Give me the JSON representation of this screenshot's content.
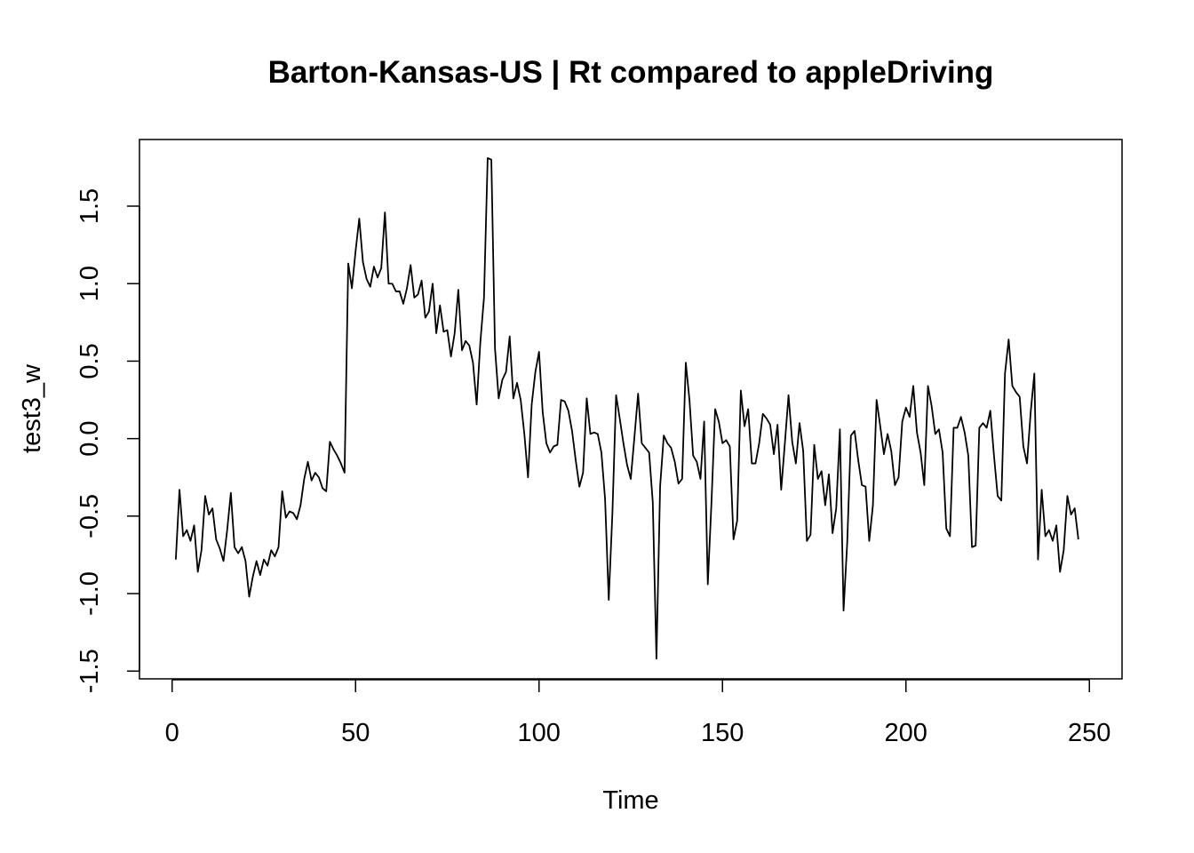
{
  "chart_data": {
    "type": "line",
    "title": "Barton-Kansas-US | Rt compared to appleDriving",
    "xlabel": "Time",
    "ylabel": "test3_w",
    "xlim": [
      -8.9,
      258.9
    ],
    "ylim": [
      -1.55,
      1.93
    ],
    "x_ticks": [
      0,
      50,
      100,
      150,
      200,
      250
    ],
    "x_tick_labels": [
      "0",
      "50",
      "100",
      "150",
      "200",
      "250"
    ],
    "y_ticks": [
      -1.5,
      -1.0,
      -0.5,
      0.0,
      0.5,
      1.0,
      1.5
    ],
    "y_tick_labels": [
      "-1.5",
      "-1.0",
      "-0.5",
      "0.0",
      "0.5",
      "1.0",
      "1.5"
    ],
    "grid": false,
    "legend": "none",
    "line_color": "#000000",
    "series": [
      {
        "x_start": 1,
        "x_step": 1,
        "values": [
          -0.78,
          -0.33,
          -0.63,
          -0.59,
          -0.66,
          -0.56,
          -0.86,
          -0.72,
          -0.37,
          -0.49,
          -0.45,
          -0.65,
          -0.71,
          -0.79,
          -0.59,
          -0.35,
          -0.7,
          -0.74,
          -0.7,
          -0.79,
          -1.02,
          -0.89,
          -0.79,
          -0.88,
          -0.78,
          -0.82,
          -0.72,
          -0.76,
          -0.7,
          -0.34,
          -0.51,
          -0.47,
          -0.48,
          -0.52,
          -0.43,
          -0.26,
          -0.15,
          -0.27,
          -0.22,
          -0.25,
          -0.32,
          -0.34,
          -0.02,
          -0.07,
          -0.11,
          -0.16,
          -0.22,
          1.13,
          0.97,
          1.21,
          1.42,
          1.14,
          1.03,
          0.98,
          1.11,
          1.04,
          1.1,
          1.46,
          1.0,
          1.0,
          0.95,
          0.95,
          0.87,
          0.97,
          1.12,
          0.91,
          0.93,
          1.02,
          0.78,
          0.82,
          1.0,
          0.68,
          0.86,
          0.69,
          0.7,
          0.53,
          0.68,
          0.96,
          0.57,
          0.63,
          0.6,
          0.49,
          0.22,
          0.62,
          0.91,
          1.81,
          1.8,
          0.58,
          0.26,
          0.38,
          0.43,
          0.66,
          0.26,
          0.36,
          0.25,
          0.03,
          -0.25,
          0.22,
          0.43,
          0.56,
          0.17,
          -0.03,
          -0.09,
          -0.05,
          -0.04,
          0.25,
          0.24,
          0.18,
          0.05,
          -0.14,
          -0.31,
          -0.22,
          0.26,
          0.03,
          0.04,
          0.03,
          -0.09,
          -0.39,
          -1.04,
          -0.48,
          0.28,
          0.13,
          -0.03,
          -0.17,
          -0.26,
          0.01,
          0.29,
          -0.03,
          -0.06,
          -0.09,
          -0.41,
          -1.42,
          -0.31,
          0.02,
          -0.03,
          -0.06,
          -0.15,
          -0.29,
          -0.26,
          0.49,
          0.25,
          -0.11,
          -0.15,
          -0.26,
          0.11,
          -0.94,
          -0.41,
          0.19,
          0.11,
          -0.03,
          -0.01,
          -0.05,
          -0.65,
          -0.53,
          0.31,
          0.08,
          0.19,
          -0.16,
          -0.16,
          -0.03,
          0.16,
          0.13,
          0.09,
          -0.1,
          0.09,
          -0.33,
          -0.03,
          0.28,
          -0.02,
          -0.16,
          0.1,
          -0.08,
          -0.66,
          -0.62,
          -0.04,
          -0.26,
          -0.21,
          -0.43,
          -0.23,
          -0.61,
          -0.45,
          0.06,
          -1.11,
          -0.67,
          0.02,
          0.05,
          -0.14,
          -0.3,
          -0.31,
          -0.66,
          -0.43,
          0.25,
          0.08,
          -0.1,
          0.03,
          -0.08,
          -0.3,
          -0.25,
          0.11,
          0.2,
          0.14,
          0.34,
          0.04,
          -0.09,
          -0.3,
          0.34,
          0.21,
          0.03,
          0.06,
          -0.09,
          -0.58,
          -0.63,
          0.07,
          0.07,
          0.14,
          0.04,
          -0.11,
          -0.7,
          -0.69,
          0.07,
          0.1,
          0.07,
          0.18,
          -0.11,
          -0.37,
          -0.4,
          0.42,
          0.64,
          0.34,
          0.3,
          0.27,
          -0.05,
          -0.16,
          0.17,
          0.42,
          -0.78,
          -0.33,
          -0.63,
          -0.59,
          -0.66,
          -0.56,
          -0.86,
          -0.72,
          -0.37,
          -0.49,
          -0.45,
          -0.65
        ]
      }
    ]
  }
}
